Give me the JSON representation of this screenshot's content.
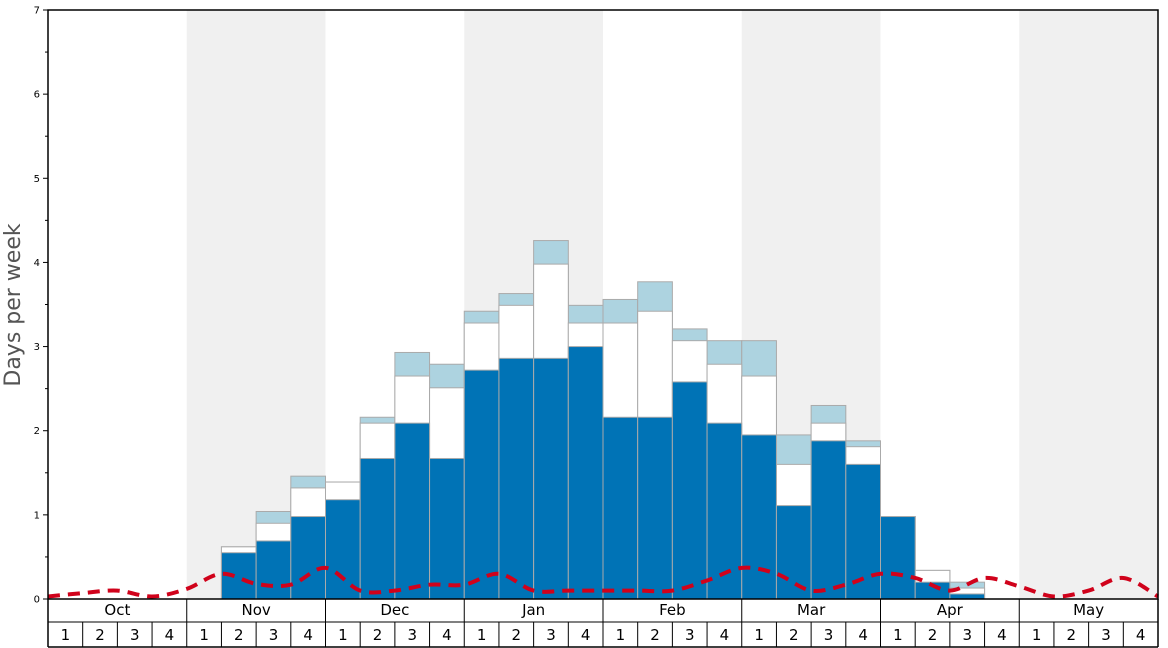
{
  "chart_data": {
    "type": "bar",
    "stacked": true,
    "xlabel": "",
    "ylabel": "Days per week",
    "ylim": [
      0,
      7
    ],
    "yticks": [
      "0",
      "1",
      "2",
      "3",
      "4",
      "5",
      "6",
      "7"
    ],
    "months": [
      "Oct",
      "Nov",
      "Dec",
      "Jan",
      "Feb",
      "Mar",
      "Apr",
      "May"
    ],
    "weeks": [
      "1",
      "2",
      "3",
      "4"
    ],
    "shaded_months": [
      "Nov",
      "Jan",
      "Mar",
      "May"
    ],
    "grid": false,
    "colors": {
      "series1": "#0073b6",
      "series2": "#ffffff",
      "series3": "#add3e0",
      "line": "#d0021b",
      "shade": "#f0f0f0",
      "bar_border": "#aaaaaa"
    },
    "stack_totals": [
      [
        0,
        0,
        0,
        0,
        0,
        0,
        0,
        0,
        0,
        0,
        0,
        0,
        0,
        0,
        0,
        0,
        0,
        0,
        0,
        0,
        0,
        0,
        0,
        0,
        0,
        0,
        0,
        0,
        0,
        0,
        0,
        0
      ],
      [
        0,
        0,
        0,
        0,
        0,
        0.55,
        0.69,
        0.98,
        1.18,
        1.67,
        2.09,
        1.67,
        2.72,
        2.86,
        2.86,
        3.0,
        2.16,
        2.16,
        2.58,
        2.09,
        1.95,
        1.11,
        1.88,
        1.6,
        0.98,
        0.2,
        0.06,
        0,
        0,
        0,
        0,
        0
      ],
      [
        0,
        0,
        0,
        0,
        0,
        0.62,
        0.9,
        1.32,
        1.39,
        2.09,
        2.65,
        2.51,
        3.28,
        3.49,
        3.98,
        3.28,
        3.28,
        3.42,
        3.07,
        2.79,
        2.65,
        1.6,
        2.09,
        1.81,
        0.98,
        0.34,
        0.13,
        0,
        0,
        0,
        0,
        0
      ],
      [
        0,
        0,
        0,
        0,
        0,
        0.62,
        1.04,
        1.46,
        1.39,
        2.16,
        2.93,
        2.79,
        3.42,
        3.63,
        4.26,
        3.49,
        3.56,
        3.77,
        3.21,
        3.07,
        3.07,
        1.95,
        2.3,
        1.88,
        0.98,
        0.34,
        0.2,
        0,
        0,
        0,
        0,
        0
      ]
    ],
    "line": [
      0.03,
      0.07,
      0.1,
      0.03,
      0.12,
      0.3,
      0.18,
      0.17,
      0.37,
      0.1,
      0.1,
      0.17,
      0.17,
      0.3,
      0.1,
      0.1,
      0.1,
      0.1,
      0.1,
      0.22,
      0.37,
      0.3,
      0.1,
      0.17,
      0.3,
      0.25,
      0.1,
      0.25,
      0.15,
      0.03,
      0.1,
      0.25,
      0.03
    ]
  }
}
